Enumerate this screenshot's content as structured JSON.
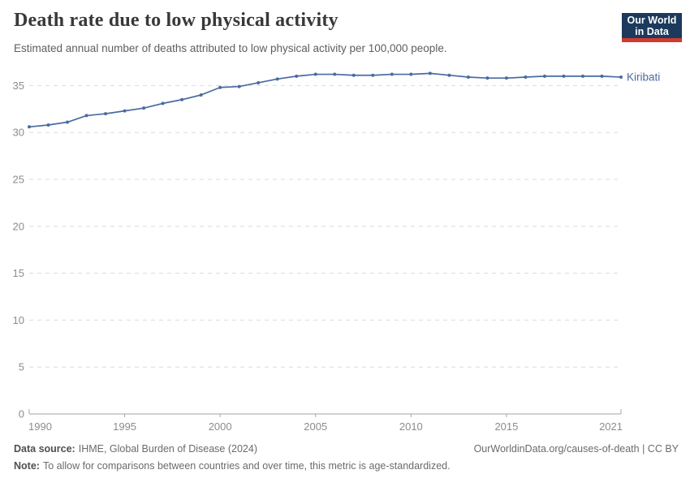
{
  "chart_data": {
    "type": "line",
    "title": "Death rate due to low physical activity",
    "subtitle": "Estimated annual number of deaths attributed to low physical activity per 100,000 people.",
    "x": [
      1990,
      1991,
      1992,
      1993,
      1994,
      1995,
      1996,
      1997,
      1998,
      1999,
      2000,
      2001,
      2002,
      2003,
      2004,
      2005,
      2006,
      2007,
      2008,
      2009,
      2010,
      2011,
      2012,
      2013,
      2014,
      2015,
      2016,
      2017,
      2018,
      2019,
      2020,
      2021
    ],
    "series": [
      {
        "name": "Kiribati",
        "color": "#4a6ba0",
        "values": [
          30.6,
          30.8,
          31.1,
          31.8,
          32.0,
          32.3,
          32.6,
          33.1,
          33.5,
          34.0,
          34.8,
          34.9,
          35.3,
          35.7,
          36.0,
          36.2,
          36.2,
          36.1,
          36.1,
          36.2,
          36.2,
          36.3,
          36.1,
          35.9,
          35.8,
          35.8,
          35.9,
          36.0,
          36.0,
          36.0,
          36.0,
          35.9
        ]
      }
    ],
    "xlabel": "",
    "ylabel": "",
    "xlim": [
      1990,
      2021
    ],
    "ylim": [
      0,
      37.2
    ],
    "xticks": [
      1990,
      1995,
      2000,
      2005,
      2010,
      2015,
      2021
    ],
    "yticks": [
      0,
      5,
      10,
      15,
      20,
      25,
      30,
      35
    ],
    "grid": "horizontal-dashed",
    "legend": "inline-end-label"
  },
  "header": {
    "logo": {
      "line1": "Our World",
      "line2": "in Data"
    }
  },
  "footer": {
    "data_source_label": "Data source:",
    "data_source_value": "IHME, Global Burden of Disease (2024)",
    "link": "OurWorldinData.org/causes-of-death | CC BY",
    "note_label": "Note:",
    "note_value": "To allow for comparisons between countries and over time, this metric is age-standardized."
  },
  "colors": {
    "line": "#4a6ba0",
    "grid": "#dcdcdc",
    "axis": "#a5a5a5",
    "tick_label": "#8c8c8c",
    "title": "#383838",
    "logo_bg": "#1b3a5c",
    "logo_accent": "#cf3b31"
  }
}
